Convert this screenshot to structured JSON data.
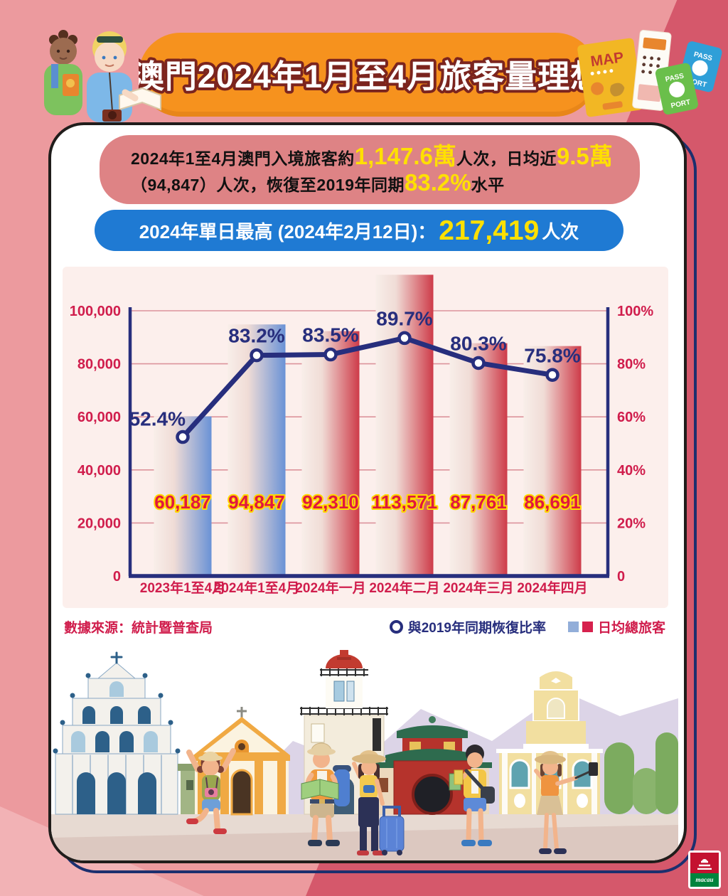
{
  "header": {
    "title": "澳門2024年1月至4月旅客量理想"
  },
  "summary_box": {
    "line1": [
      {
        "t": "2024年1至4月澳門入境旅客約"
      },
      {
        "t": "1,147.6萬"
      },
      {
        "t": "人次，日均近"
      },
      {
        "t": "9.5萬"
      }
    ],
    "line2": [
      {
        "t": "（94,847）人次，恢復至2019年同期"
      },
      {
        "t": "83.2%"
      },
      {
        "t": "水平"
      }
    ]
  },
  "peak_box": {
    "prefix": "2024年單日最高 (2024年2月12日)：",
    "value": "217,419",
    "suffix": "人次"
  },
  "chart_data": {
    "type": "bar",
    "subtype": "bar-with-line-overlay",
    "categories": [
      "2023年1至4月",
      "2024年1至4月",
      "2024年一月",
      "2024年二月",
      "2024年三月",
      "2024年四月"
    ],
    "series": [
      {
        "name": "日均總旅客",
        "type": "bar",
        "values": [
          60187,
          94847,
          92310,
          113571,
          87761,
          86691
        ],
        "labels": [
          "60,187",
          "94,847",
          "92,310",
          "113,571",
          "87,761",
          "86,691"
        ],
        "bar_styles": [
          "blue",
          "blue",
          "red",
          "red",
          "red",
          "red"
        ]
      },
      {
        "name": "與2019年同期恢復比率",
        "type": "line",
        "values": [
          52.4,
          83.2,
          83.5,
          89.7,
          80.3,
          75.8
        ],
        "labels": [
          "52.4%",
          "83.2%",
          "83.5%",
          "89.7%",
          "80.3%",
          "75.8%"
        ]
      }
    ],
    "y_left": {
      "min": 0,
      "max": 100000,
      "ticks": [
        "0",
        "20,000",
        "40,000",
        "60,000",
        "80,000",
        "100,000"
      ]
    },
    "y_right": {
      "min": 0,
      "max": 100,
      "ticks": [
        "0",
        "20%",
        "40%",
        "60%",
        "80%",
        "100%"
      ]
    },
    "grid": true,
    "legend_position": "bottom-right"
  },
  "footer": {
    "source": "數據來源：統計暨普查局",
    "legend_line": "與2019年同期恢復比率",
    "legend_bar": "日均總旅客"
  },
  "decor": {
    "map_label": "MAP",
    "passport_label_top": "PASS",
    "passport_label_bottom": "PORT",
    "logo_text": "macau"
  },
  "icons": {
    "legend": [
      "ring-marker",
      "blue-square-swatch",
      "red-square-swatch"
    ],
    "header_left": [
      "tourist-child",
      "tourist-with-map"
    ],
    "header_right": [
      "folded-map",
      "ticket-strip",
      "passport-green",
      "passport-blue"
    ],
    "skyline": [
      "ruins-of-st-pauls",
      "orange-church",
      "guia-lighthouse",
      "a-ma-temple",
      "colonial-building",
      "bushes",
      "mountains"
    ],
    "tourists": [
      "jumping-girl",
      "backpacker-with-map",
      "woman-with-suitcase",
      "man-with-map-and-bag",
      "woman-with-selfie-stick"
    ],
    "logo": "macau-tourism-logo"
  },
  "colors": {
    "background_pink": "#ec9a9e",
    "background_red": "#d5586b",
    "background_light_wedge": "#f2b2b5",
    "banner_orange": "#f6921e",
    "title_outline": "#7b241e",
    "summary_box_bg": "#de8385",
    "highlight_yellow": "#ffe000",
    "peak_box_bg": "#1f7ad3",
    "panel_bg": "#fcefec",
    "navy": "#272e7d",
    "crimson": "#d01d4c",
    "grid_pink": "#dc939b",
    "bar_light": "#f8eee9",
    "bar_blue": "#6a92d6",
    "bar_red": "#ce3b49",
    "bar_label_red": "#e0183f",
    "bar_label_outline": "#ffd900",
    "legend_blue_square": "#92aed9",
    "legend_red_square": "#d6214d"
  }
}
